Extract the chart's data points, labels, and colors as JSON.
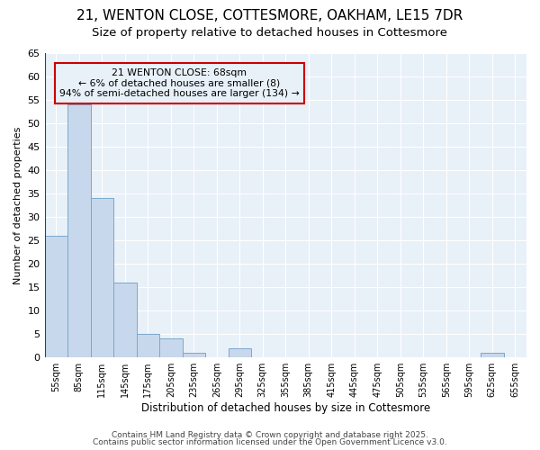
{
  "title_line1": "21, WENTON CLOSE, COTTESMORE, OAKHAM, LE15 7DR",
  "title_line2": "Size of property relative to detached houses in Cottesmore",
  "xlabel": "Distribution of detached houses by size in Cottesmore",
  "ylabel": "Number of detached properties",
  "bin_labels": [
    "55sqm",
    "85sqm",
    "115sqm",
    "145sqm",
    "175sqm",
    "205sqm",
    "235sqm",
    "265sqm",
    "295sqm",
    "325sqm",
    "355sqm",
    "385sqm",
    "415sqm",
    "445sqm",
    "475sqm",
    "505sqm",
    "535sqm",
    "565sqm",
    "595sqm",
    "625sqm",
    "655sqm"
  ],
  "counts": [
    26,
    54,
    34,
    16,
    5,
    4,
    1,
    0,
    2,
    0,
    0,
    0,
    0,
    0,
    0,
    0,
    0,
    0,
    0,
    1,
    0
  ],
  "bar_color": "#c8d8ec",
  "bar_edge_color": "#7aa8cc",
  "bar_width": 1.0,
  "ylim": [
    0,
    65
  ],
  "yticks": [
    0,
    5,
    10,
    15,
    20,
    25,
    30,
    35,
    40,
    45,
    50,
    55,
    60,
    65
  ],
  "vline_color": "#cc0000",
  "annotation_text": "21 WENTON CLOSE: 68sqm\n← 6% of detached houses are smaller (8)\n94% of semi-detached houses are larger (134) →",
  "annotation_box_color": "#cc0000",
  "bg_color": "#ffffff",
  "plot_bg_color": "#e8f0f8",
  "footer_line1": "Contains HM Land Registry data © Crown copyright and database right 2025.",
  "footer_line2": "Contains public sector information licensed under the Open Government Licence v3.0.",
  "grid_color": "#ffffff",
  "title_fontsize": 11,
  "subtitle_fontsize": 9.5
}
